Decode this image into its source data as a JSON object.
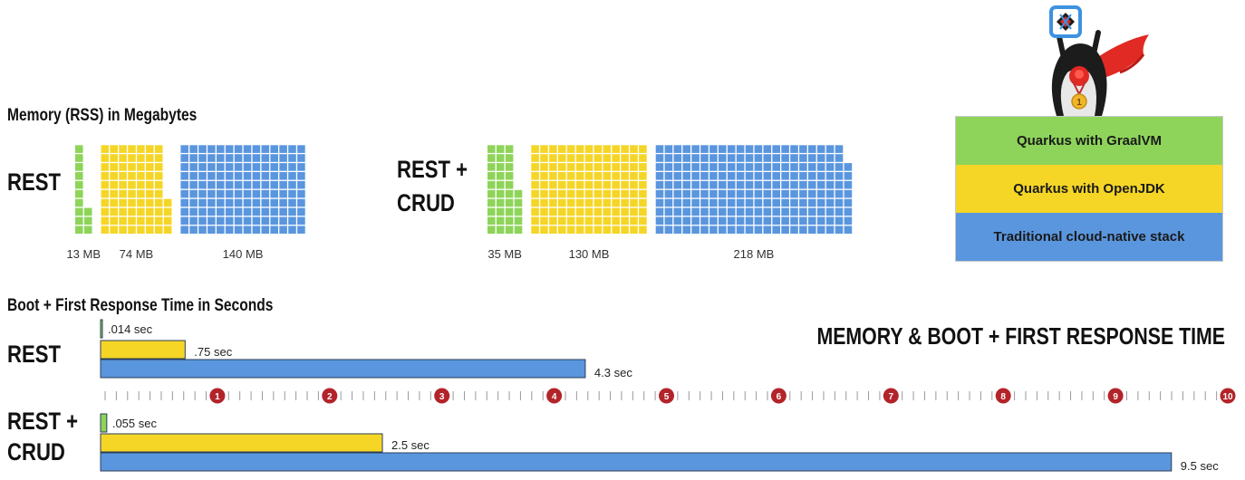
{
  "colors": {
    "green": "#8ed45a",
    "yellow": "#f5d627",
    "blue": "#5a96de",
    "red_marker": "#b3242a",
    "tick": "#9a9a9a"
  },
  "title": "MEMORY & BOOT + FIRST RESPONSE TIME",
  "legend": [
    {
      "label": "Quarkus with GraalVM",
      "color": "#8ed45a"
    },
    {
      "label": "Quarkus with OpenJDK",
      "color": "#f5d627"
    },
    {
      "label": "Traditional cloud-native stack",
      "color": "#5a96de"
    }
  ],
  "mascot": {
    "icon": "quarkus-penguin-superhero-icon",
    "medal_text": "1"
  },
  "chart_data": [
    {
      "type": "waffle",
      "title": "Memory (RSS) in Megabytes",
      "unit": "MB",
      "groups": [
        {
          "label": "REST",
          "series": [
            {
              "name": "Quarkus with GraalVM",
              "value": 13,
              "label": "13 MB"
            },
            {
              "name": "Quarkus with OpenJDK",
              "value": 74,
              "label": "74 MB"
            },
            {
              "name": "Traditional cloud-native stack",
              "value": 140,
              "label": "140 MB"
            }
          ]
        },
        {
          "label": "REST + CRUD",
          "series": [
            {
              "name": "Quarkus with GraalVM",
              "value": 35,
              "label": "35 MB"
            },
            {
              "name": "Quarkus with OpenJDK",
              "value": 130,
              "label": "130 MB"
            },
            {
              "name": "Traditional cloud-native stack",
              "value": 218,
              "label": "218 MB"
            }
          ]
        }
      ]
    },
    {
      "type": "bar",
      "orientation": "horizontal",
      "title": "Boot + First Response Time in Seconds",
      "xlim": [
        0,
        10
      ],
      "ticks": [
        "1",
        "2",
        "3",
        "4",
        "5",
        "6",
        "7",
        "8",
        "9",
        "10"
      ],
      "groups": [
        {
          "label": "REST",
          "series": [
            {
              "name": "Quarkus with GraalVM",
              "value": 0.014,
              "label": ".014 sec"
            },
            {
              "name": "Quarkus with OpenJDK",
              "value": 0.75,
              "label": ".75 sec"
            },
            {
              "name": "Traditional cloud-native stack",
              "value": 4.3,
              "label": "4.3 sec"
            }
          ]
        },
        {
          "label": "REST + CRUD",
          "series": [
            {
              "name": "Quarkus with GraalVM",
              "value": 0.055,
              "label": ".055 sec"
            },
            {
              "name": "Quarkus with OpenJDK",
              "value": 2.5,
              "label": "2.5 sec"
            },
            {
              "name": "Traditional cloud-native stack",
              "value": 9.5,
              "label": "9.5 sec"
            }
          ]
        }
      ]
    }
  ]
}
